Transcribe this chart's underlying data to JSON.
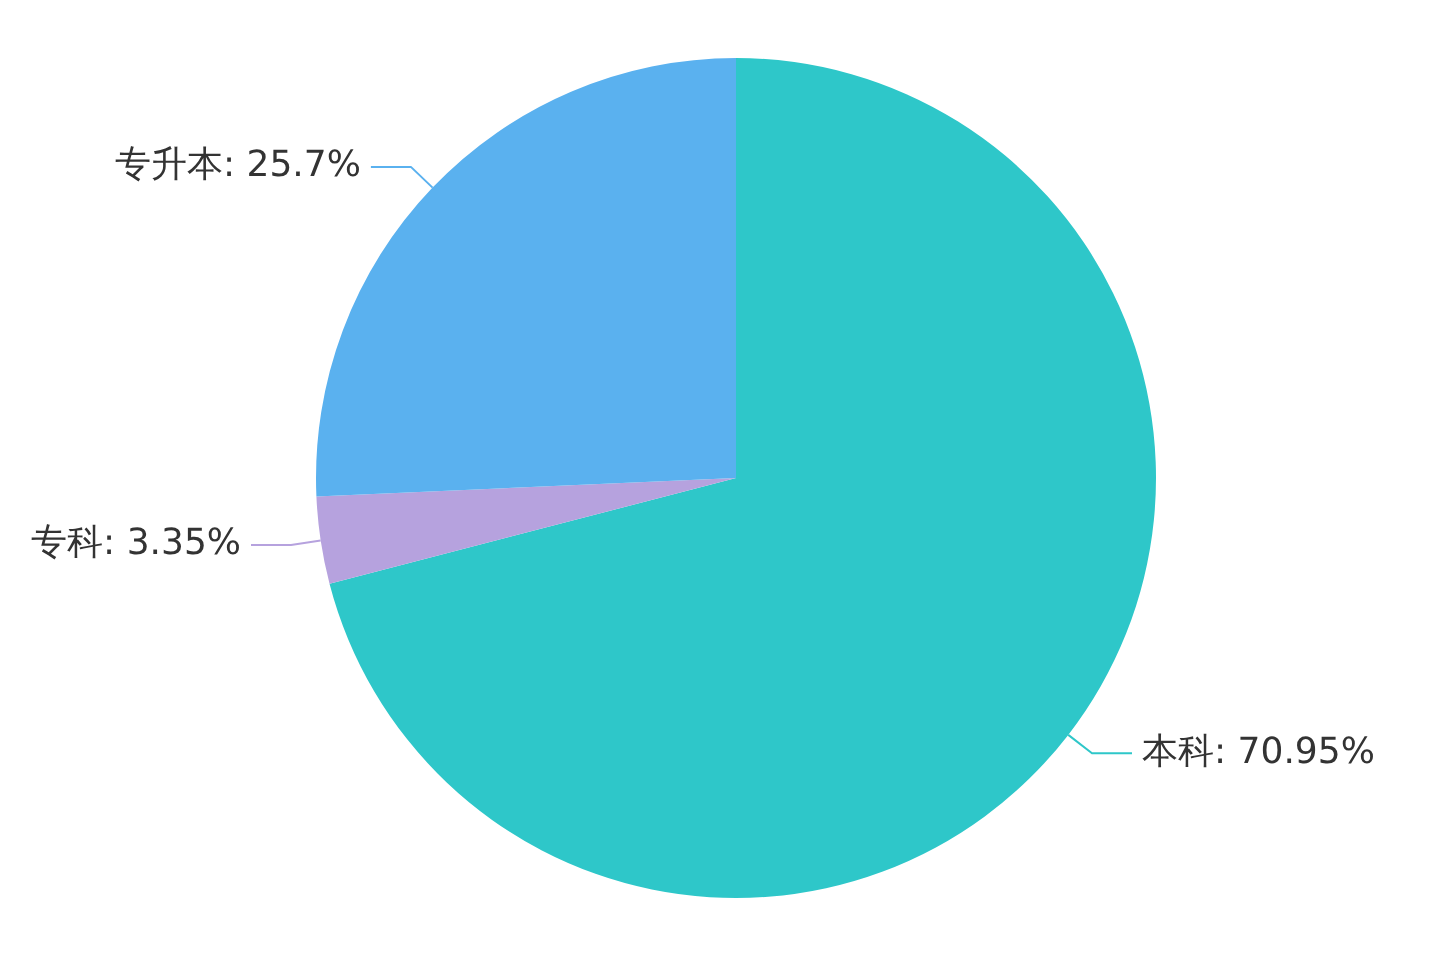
{
  "chart_data": {
    "type": "pie",
    "categories": [
      "本科",
      "专科",
      "专升本"
    ],
    "values": [
      70.95,
      3.35,
      25.7
    ],
    "value_labels": [
      "70.95%",
      "3.35%",
      "25.7%"
    ],
    "colors": [
      "#2ec7c9",
      "#b6a2de",
      "#5ab1ef"
    ],
    "legend": false
  }
}
